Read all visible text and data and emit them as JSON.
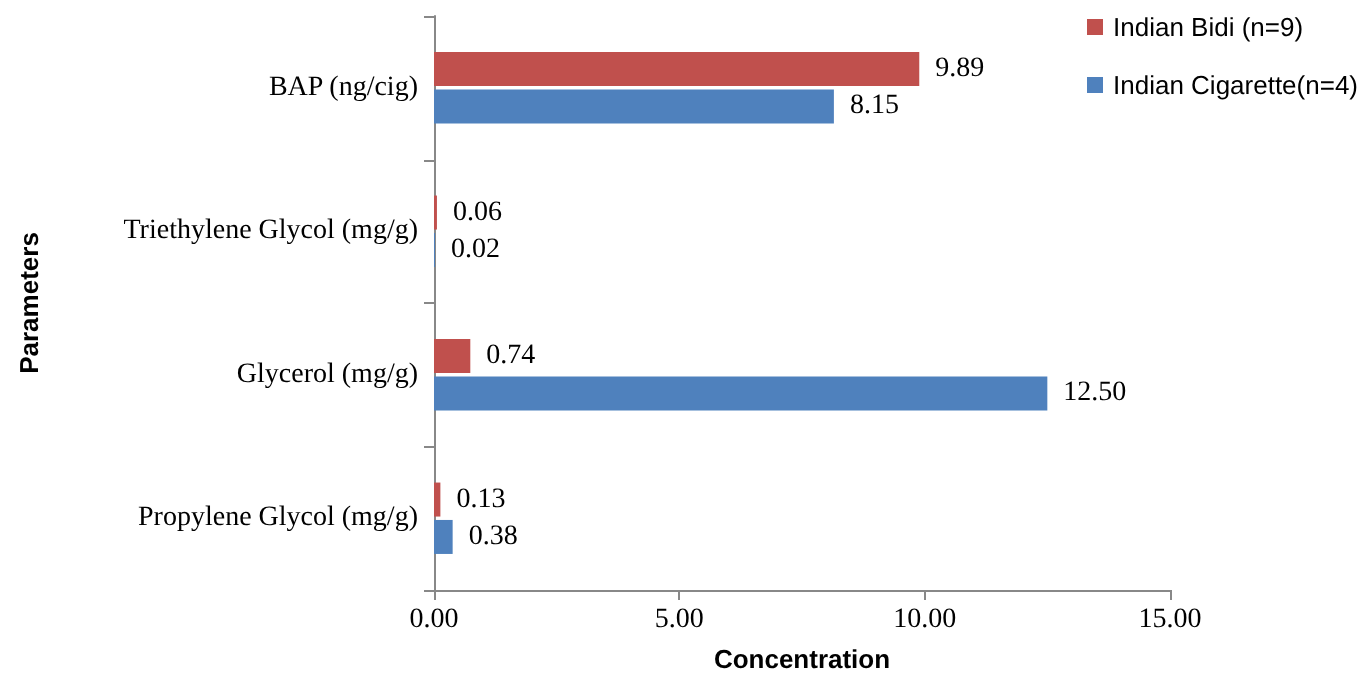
{
  "chart_data": {
    "type": "bar",
    "orientation": "horizontal",
    "xlabel": "Concentration",
    "ylabel": "Parameters",
    "categories": [
      "BAP (ng/cig)",
      "Triethylene Glycol (mg/g)",
      "Glycerol (mg/g)",
      "Propylene Glycol (mg/g)"
    ],
    "series": [
      {
        "name": "Indian Bidi (n=9)",
        "color": "#c0504d",
        "values": [
          9.89,
          0.06,
          0.74,
          0.13
        ],
        "value_labels": [
          "9.89",
          "0.06",
          "0.74",
          "0.13"
        ]
      },
      {
        "name": "Indian Cigarette(n=4)",
        "color": "#4f81bd",
        "values": [
          8.15,
          0.02,
          12.5,
          0.38
        ],
        "value_labels": [
          "8.15",
          "0.02",
          "12.50",
          "0.38"
        ]
      }
    ],
    "xlim": [
      0,
      15
    ],
    "xticks": [
      {
        "value": 0,
        "label": "0.00"
      },
      {
        "value": 5,
        "label": "5.00"
      },
      {
        "value": 10,
        "label": "10.00"
      },
      {
        "value": 15,
        "label": "15.00"
      }
    ],
    "grid": false,
    "legend": "top right"
  }
}
